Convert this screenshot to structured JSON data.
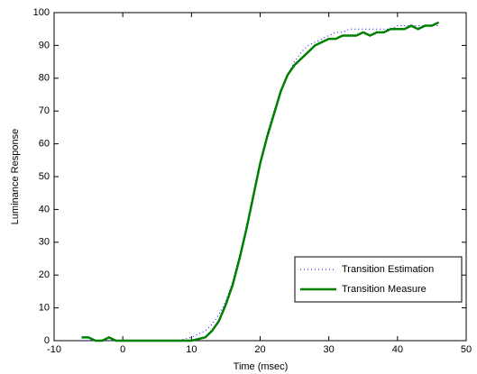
{
  "chart_data": {
    "type": "line",
    "xlabel": "Time (msec)",
    "ylabel": "Luminance Response",
    "x": [
      -6,
      -5,
      -4,
      -3,
      -2,
      -1,
      0,
      1,
      2,
      3,
      4,
      5,
      6,
      7,
      8,
      9,
      10,
      11,
      12,
      13,
      14,
      15,
      16,
      17,
      18,
      19,
      20,
      21,
      22,
      23,
      24,
      25,
      26,
      27,
      28,
      29,
      30,
      31,
      32,
      33,
      34,
      35,
      36,
      37,
      38,
      39,
      40,
      41,
      42,
      43,
      44,
      45,
      46
    ],
    "series": [
      {
        "name": "Transition Estimation",
        "color": "#0000ff",
        "style": "dotted",
        "values": [
          0,
          0,
          0,
          0,
          0,
          0,
          0,
          0,
          0,
          0,
          0,
          0,
          0,
          0,
          0,
          0.5,
          1,
          2,
          3,
          5,
          8,
          12,
          18,
          26,
          35,
          45,
          54,
          63,
          70,
          76,
          81,
          85,
          88,
          90,
          91,
          92,
          93,
          94,
          94,
          95,
          95,
          95,
          95,
          95,
          95,
          95,
          96,
          96,
          96,
          96,
          96,
          96,
          96
        ]
      },
      {
        "name": "Transition Measure",
        "color": "#007f00",
        "style": "solid",
        "values": [
          1,
          1,
          0,
          0,
          1,
          0,
          0,
          0,
          0,
          0,
          0,
          0,
          0,
          0,
          0,
          0,
          0,
          0.5,
          1,
          3,
          6,
          11,
          17,
          25,
          34,
          44,
          54,
          62,
          69,
          76,
          81,
          84,
          86,
          88,
          90,
          91,
          92,
          92,
          93,
          93,
          93,
          94,
          93,
          94,
          94,
          95,
          95,
          95,
          96,
          95,
          96,
          96,
          97
        ]
      }
    ],
    "xlim": [
      -10,
      50
    ],
    "xticks": [
      -10,
      0,
      10,
      20,
      30,
      40,
      50
    ],
    "ylim": [
      0,
      100
    ],
    "yticks": [
      0,
      10,
      20,
      30,
      40,
      50,
      60,
      70,
      80,
      90,
      100
    ],
    "legend": "lower right"
  }
}
